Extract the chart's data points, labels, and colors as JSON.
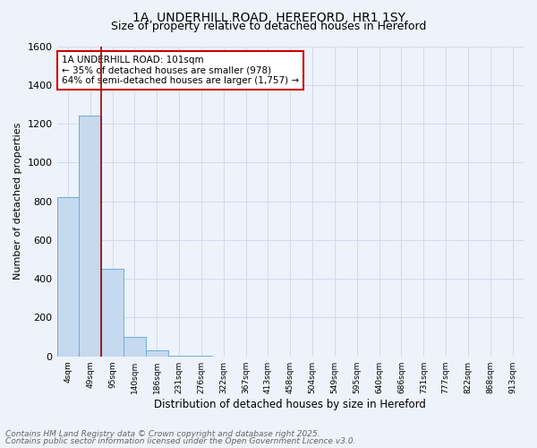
{
  "title_line1": "1A, UNDERHILL ROAD, HEREFORD, HR1 1SY",
  "title_line2": "Size of property relative to detached houses in Hereford",
  "xlabel": "Distribution of detached houses by size in Hereford",
  "ylabel": "Number of detached properties",
  "categories": [
    "4sqm",
    "49sqm",
    "95sqm",
    "140sqm",
    "186sqm",
    "231sqm",
    "276sqm",
    "322sqm",
    "367sqm",
    "413sqm",
    "458sqm",
    "504sqm",
    "549sqm",
    "595sqm",
    "640sqm",
    "686sqm",
    "731sqm",
    "777sqm",
    "822sqm",
    "868sqm",
    "913sqm"
  ],
  "values": [
    820,
    1240,
    450,
    100,
    30,
    5,
    2,
    0,
    0,
    0,
    0,
    0,
    0,
    0,
    0,
    0,
    0,
    0,
    0,
    0,
    0
  ],
  "bar_color": "#c5d9ef",
  "bar_edge_color": "#6baed6",
  "grid_color": "#d0dcec",
  "background_color": "#eef2fa",
  "vline_color": "#990000",
  "ylim": [
    0,
    1600
  ],
  "yticks": [
    0,
    200,
    400,
    600,
    800,
    1000,
    1200,
    1400,
    1600
  ],
  "annotation_text": "1A UNDERHILL ROAD: 101sqm\n← 35% of detached houses are smaller (978)\n64% of semi-detached houses are larger (1,757) →",
  "annotation_box_color": "#ffffff",
  "annotation_edge_color": "#cc0000",
  "footer_line1": "Contains HM Land Registry data © Crown copyright and database right 2025.",
  "footer_line2": "Contains public sector information licensed under the Open Government Licence v3.0.",
  "footer_color": "#666666",
  "title_fontsize": 10,
  "subtitle_fontsize": 9,
  "annotation_fontsize": 7.5,
  "footer_fontsize": 6.5,
  "ylabel_fontsize": 8,
  "xlabel_fontsize": 8.5
}
